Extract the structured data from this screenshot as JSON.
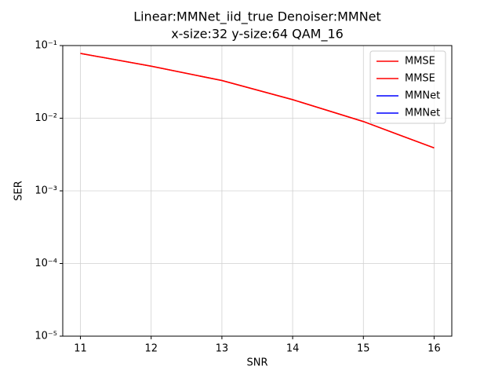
{
  "chart_data": {
    "type": "line",
    "title": [
      "Linear:MMNet_iid_true Denoiser:MMNet",
      "x-size:32 y-size:64 QAM_16"
    ],
    "xlabel": "SNR",
    "ylabel": "SER",
    "x": [
      11,
      12,
      13,
      14,
      15,
      16
    ],
    "series": [
      {
        "name": "MMSE",
        "color": "#ff0000",
        "values": [
          0.078,
          0.052,
          0.033,
          0.018,
          0.009,
          0.0039
        ]
      },
      {
        "name": "MMSE",
        "color": "#ff0000",
        "values": [
          0.078,
          0.052,
          0.033,
          0.018,
          0.009,
          0.0039
        ]
      },
      {
        "name": "MMNet",
        "color": "#0000ff",
        "values": [
          null,
          null,
          null,
          null,
          null,
          null
        ]
      },
      {
        "name": "MMNet",
        "color": "#0000ff",
        "values": [
          null,
          null,
          null,
          null,
          null,
          null
        ]
      }
    ],
    "xlim": [
      10.75,
      16.25
    ],
    "xticks": [
      11,
      12,
      13,
      14,
      15,
      16
    ],
    "ylim": [
      1e-05,
      0.1
    ],
    "yticks": [
      {
        "value": 1e-05,
        "label": "10⁻⁵"
      },
      {
        "value": 0.0001,
        "label": "10⁻⁴"
      },
      {
        "value": 0.001,
        "label": "10⁻³"
      },
      {
        "value": 0.01,
        "label": "10⁻²"
      },
      {
        "value": 0.1,
        "label": "10⁻¹"
      }
    ],
    "ylog": true,
    "grid": true,
    "legend": "upper right"
  }
}
